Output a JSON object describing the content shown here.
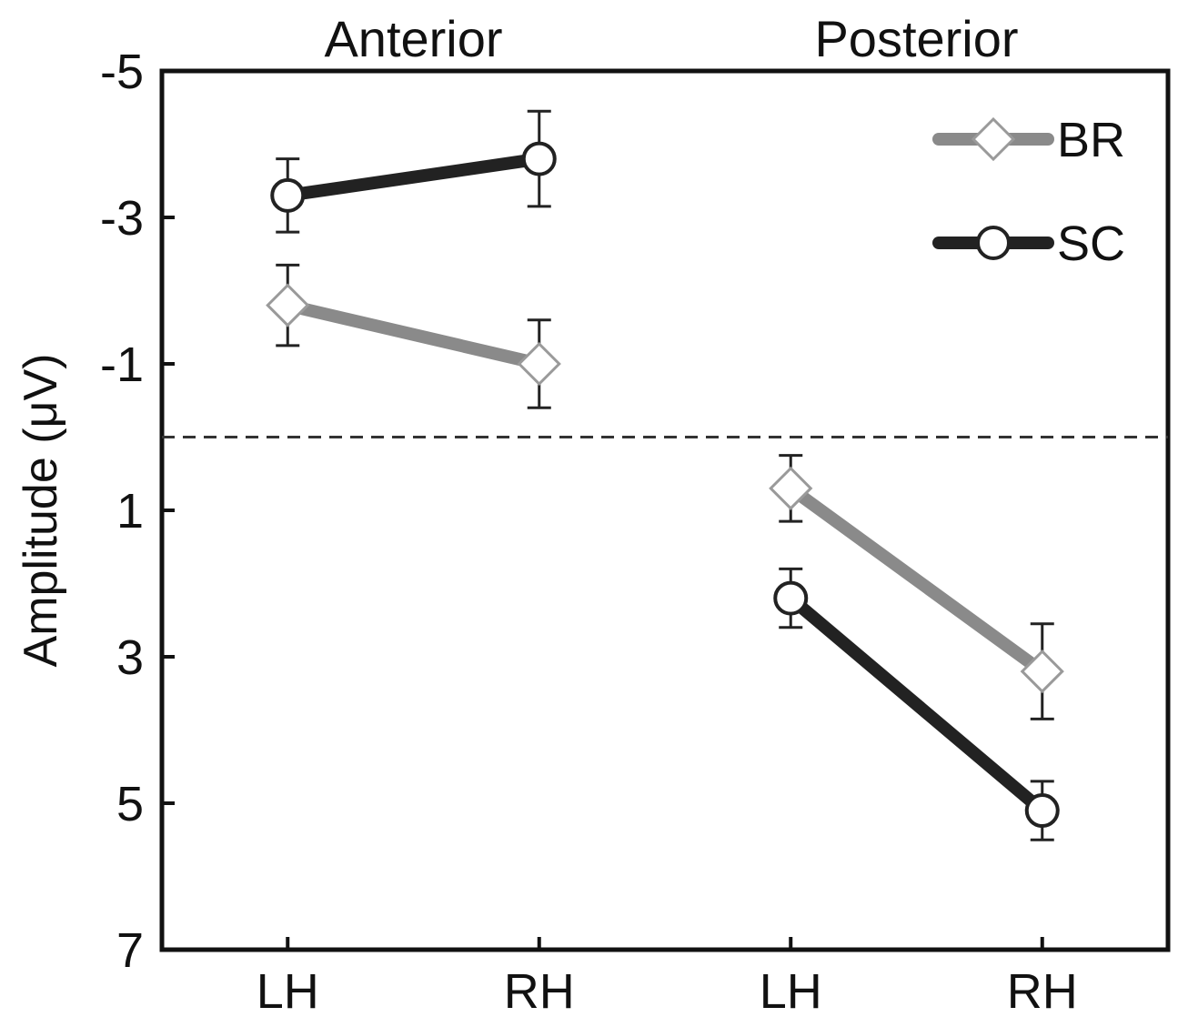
{
  "chart_data": {
    "type": "line",
    "ylabel": "Amplitude (μV)",
    "y_inverted": true,
    "ylim": [
      -5,
      7
    ],
    "yticks": [
      -5,
      -3,
      -1,
      1,
      3,
      5,
      7
    ],
    "reference_line": {
      "y": 0,
      "style": "dashed"
    },
    "groups": [
      {
        "label": "Anterior",
        "categories": [
          "LH",
          "RH"
        ]
      },
      {
        "label": "Posterior",
        "categories": [
          "LH",
          "RH"
        ]
      }
    ],
    "series": [
      {
        "name": "BR",
        "marker": "diamond",
        "color": "#8a8a8a",
        "values": [
          [
            -1.8,
            -1.0
          ],
          [
            0.7,
            3.2
          ]
        ],
        "errors": [
          [
            0.55,
            0.6
          ],
          [
            0.45,
            0.65
          ]
        ]
      },
      {
        "name": "SC",
        "marker": "circle",
        "color": "#222222",
        "values": [
          [
            -3.3,
            -3.8
          ],
          [
            2.2,
            5.1
          ]
        ],
        "errors": [
          [
            0.5,
            0.65
          ],
          [
            0.4,
            0.4
          ]
        ]
      }
    ],
    "legend": {
      "position": "top-right"
    },
    "grid": false
  }
}
